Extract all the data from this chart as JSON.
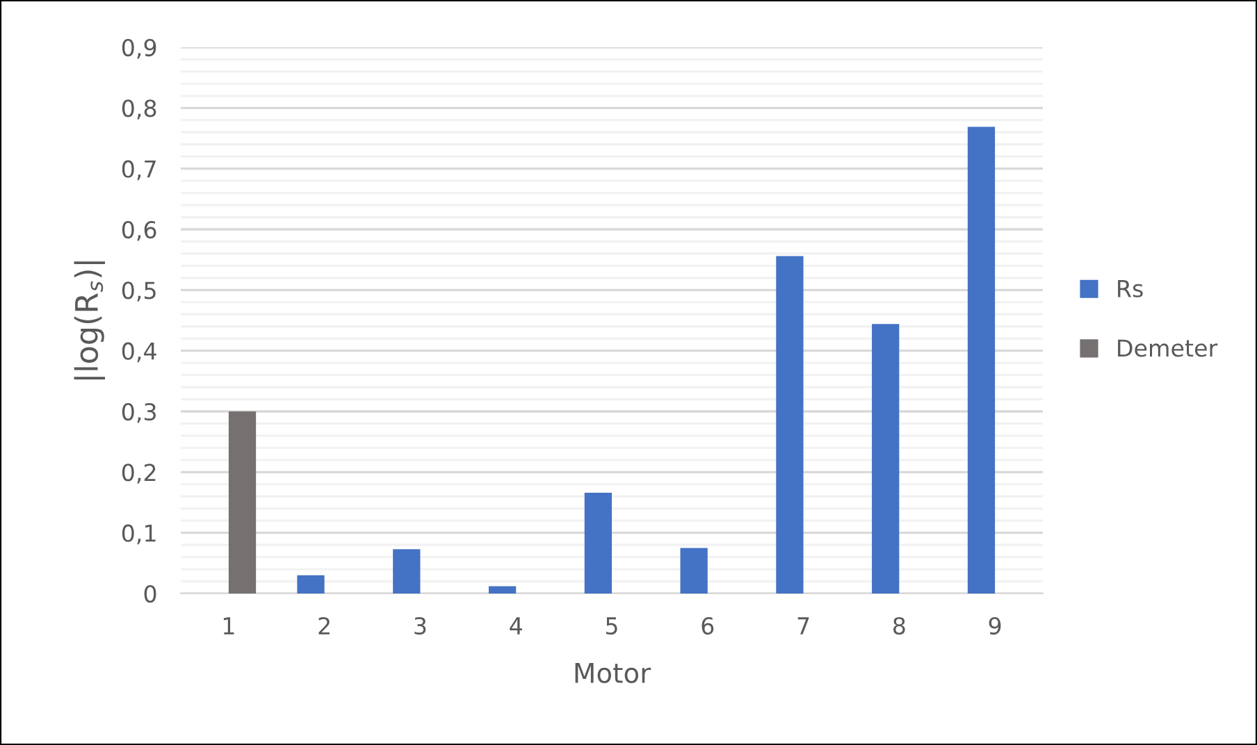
{
  "chart_data": {
    "type": "bar",
    "xlabel": "Motor",
    "ylabel": "|log(R$_{s}$)|",
    "categories": [
      "1",
      "2",
      "3",
      "4",
      "5",
      "6",
      "7",
      "8",
      "9"
    ],
    "series": [
      {
        "name": "Rs",
        "color": "#4472c4",
        "values": [
          null,
          0.03,
          0.073,
          0.012,
          0.166,
          0.075,
          0.556,
          0.444,
          0.769
        ]
      },
      {
        "name": "Demeter",
        "color": "#767171",
        "values": [
          0.3,
          null,
          null,
          null,
          null,
          null,
          null,
          null,
          null
        ]
      }
    ],
    "ylim": [
      0,
      0.9
    ],
    "yticks": [
      {
        "value": 0,
        "label": "0"
      },
      {
        "value": 0.02,
        "label": null
      },
      {
        "value": 0.04,
        "label": null
      },
      {
        "value": 0.06,
        "label": null
      },
      {
        "value": 0.08,
        "label": null
      },
      {
        "value": 0.1,
        "label": "0,1"
      },
      {
        "value": 0.12,
        "label": null
      },
      {
        "value": 0.14,
        "label": null
      },
      {
        "value": 0.16,
        "label": null
      },
      {
        "value": 0.18,
        "label": null
      },
      {
        "value": 0.2,
        "label": "0,2"
      },
      {
        "value": 0.22,
        "label": null
      },
      {
        "value": 0.24,
        "label": null
      },
      {
        "value": 0.26,
        "label": null
      },
      {
        "value": 0.28,
        "label": null
      },
      {
        "value": 0.3,
        "label": "0,3"
      },
      {
        "value": 0.32,
        "label": null
      },
      {
        "value": 0.34,
        "label": null
      },
      {
        "value": 0.36,
        "label": null
      },
      {
        "value": 0.38,
        "label": null
      },
      {
        "value": 0.4,
        "label": "0,4"
      },
      {
        "value": 0.42,
        "label": null
      },
      {
        "value": 0.44,
        "label": null
      },
      {
        "value": 0.46,
        "label": null
      },
      {
        "value": 0.48,
        "label": null
      },
      {
        "value": 0.5,
        "label": "0,5"
      },
      {
        "value": 0.52,
        "label": null
      },
      {
        "value": 0.54,
        "label": null
      },
      {
        "value": 0.56,
        "label": null
      },
      {
        "value": 0.58,
        "label": null
      },
      {
        "value": 0.6,
        "label": "0,6"
      },
      {
        "value": 0.62,
        "label": null
      },
      {
        "value": 0.64,
        "label": null
      },
      {
        "value": 0.66,
        "label": null
      },
      {
        "value": 0.68,
        "label": null
      },
      {
        "value": 0.7,
        "label": "0,7"
      },
      {
        "value": 0.72,
        "label": null
      },
      {
        "value": 0.74,
        "label": null
      },
      {
        "value": 0.76,
        "label": null
      },
      {
        "value": 0.78,
        "label": null
      },
      {
        "value": 0.8,
        "label": "0,8"
      },
      {
        "value": 0.82,
        "label": null
      },
      {
        "value": 0.84,
        "label": null
      },
      {
        "value": 0.86,
        "label": null
      },
      {
        "value": 0.88,
        "label": null
      },
      {
        "value": 0.9,
        "label": "0,9"
      }
    ],
    "grid": "y",
    "legend": "right"
  }
}
